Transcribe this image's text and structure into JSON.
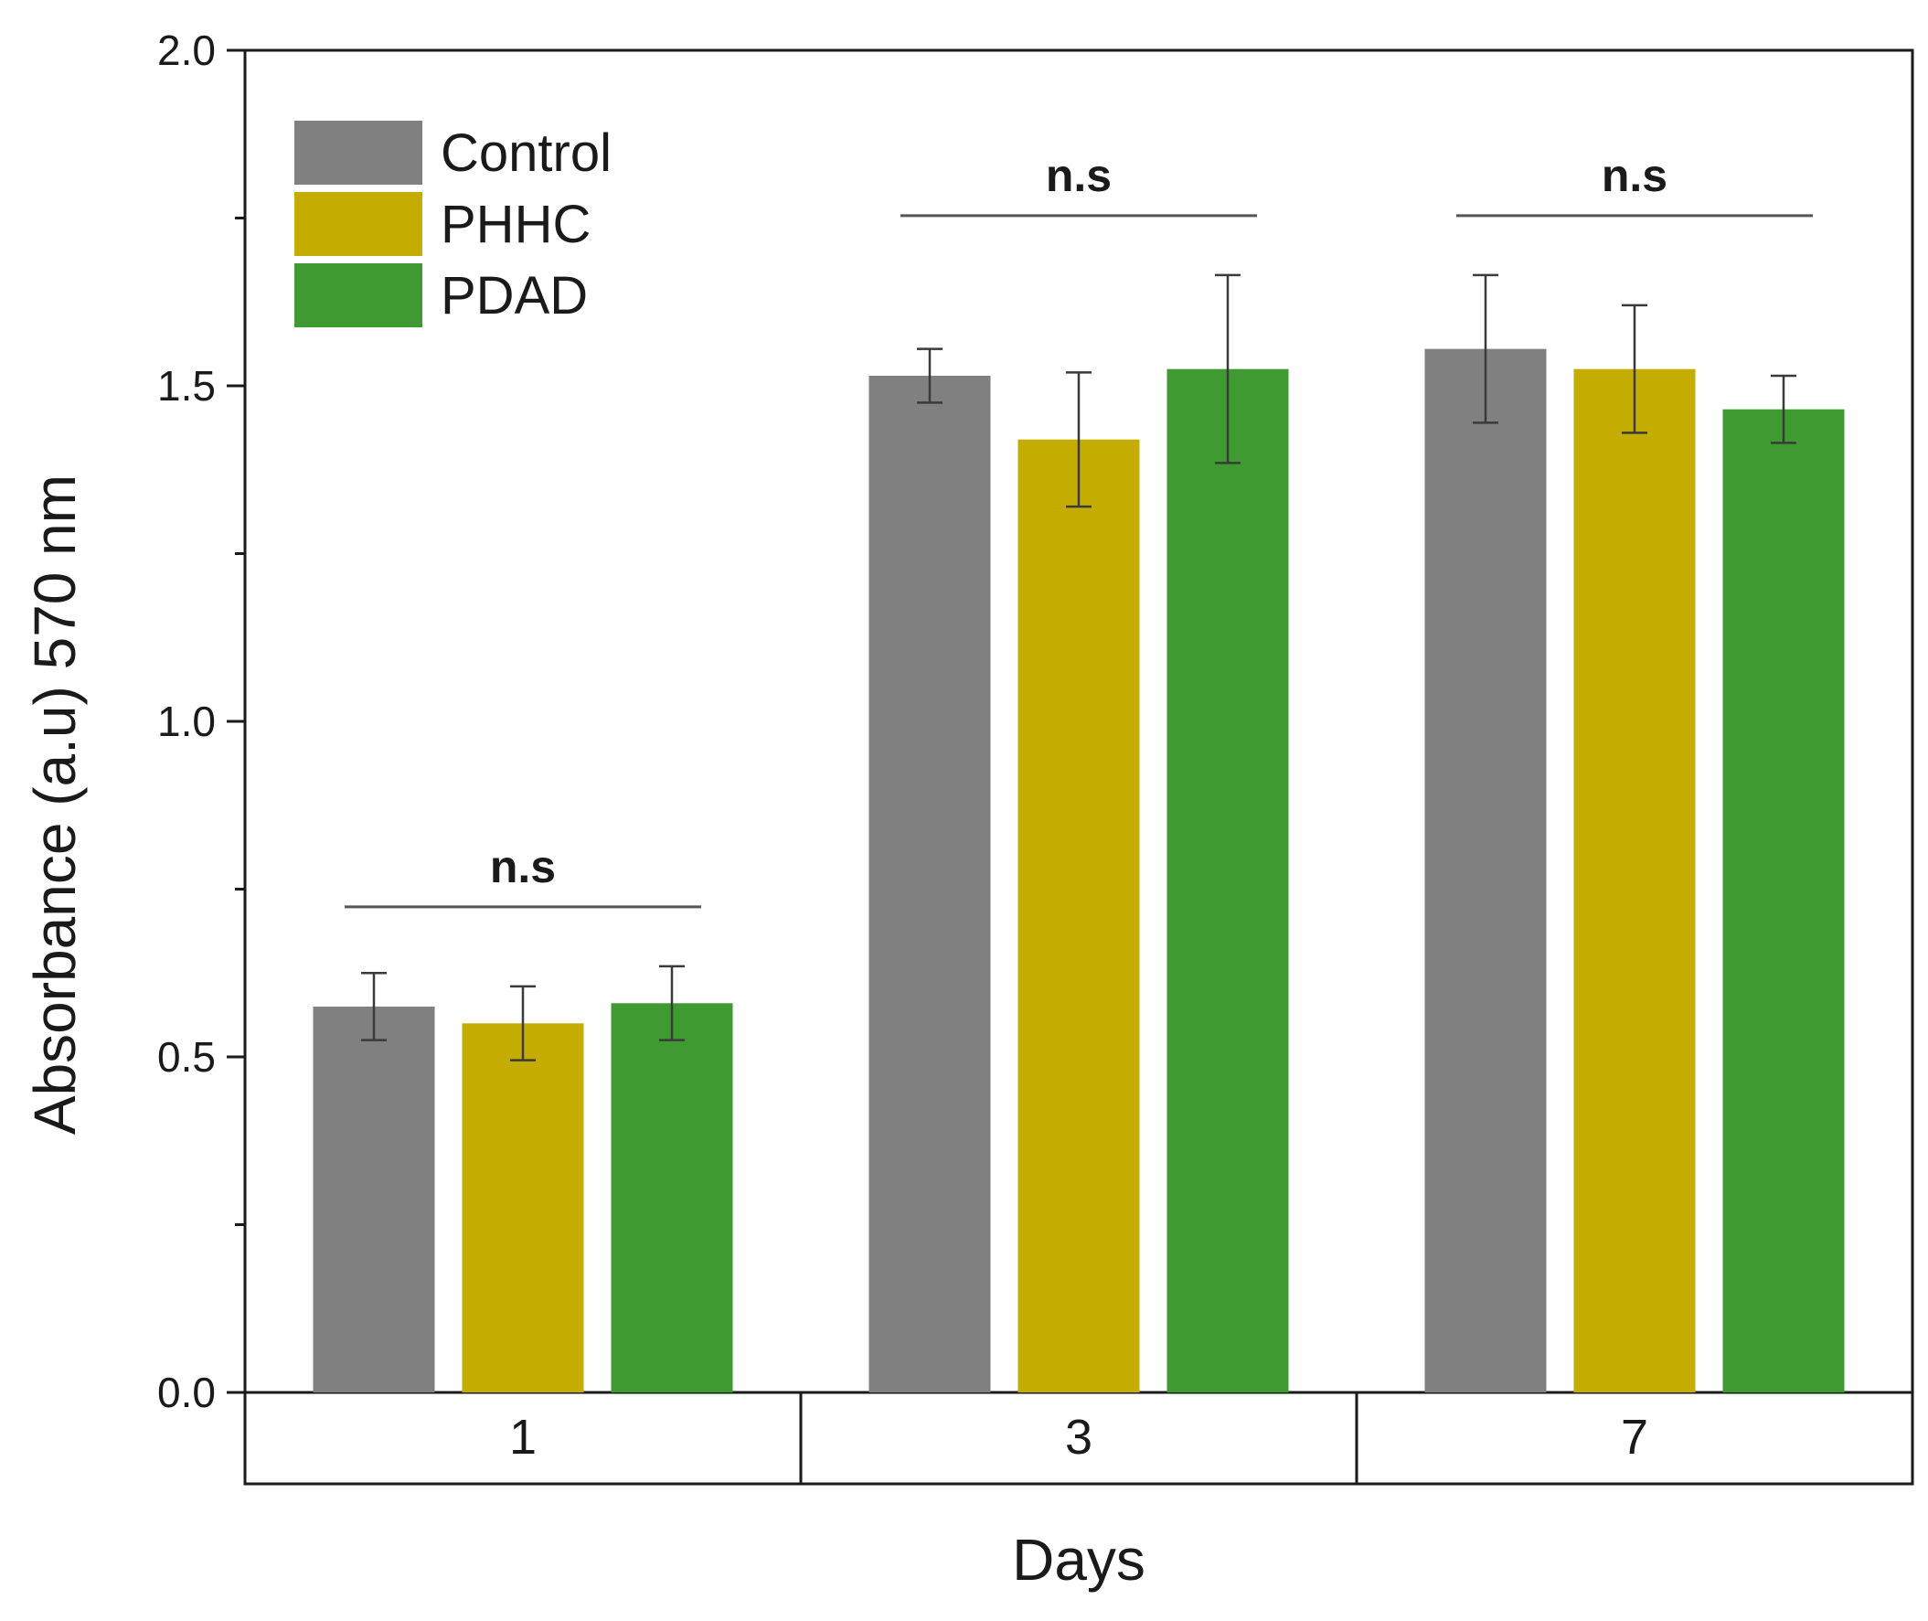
{
  "chart_data": {
    "type": "bar",
    "title": "",
    "xlabel": "Days",
    "ylabel": "Absorbance (a.u) 570 nm",
    "ylim": [
      0,
      2.0
    ],
    "yticks": [
      "0.0",
      "0.5",
      "1.0",
      "1.5",
      "2.0"
    ],
    "categories": [
      "1",
      "3",
      "7"
    ],
    "series": [
      {
        "name": "Control",
        "color": "#808080",
        "values": [
          0.575,
          1.515,
          1.555
        ],
        "errors": [
          0.05,
          0.04,
          0.11
        ]
      },
      {
        "name": "PHHC",
        "color": "#c4ad00",
        "values": [
          0.55,
          1.42,
          1.525
        ],
        "errors": [
          0.055,
          0.1,
          0.095
        ]
      },
      {
        "name": "PDAD",
        "color": "#3f9a31",
        "values": [
          0.58,
          1.525,
          1.465
        ],
        "errors": [
          0.055,
          0.14,
          0.05
        ]
      }
    ],
    "significance": [
      "n.s",
      "n.s",
      "n.s"
    ],
    "legend_position": "top-left"
  }
}
